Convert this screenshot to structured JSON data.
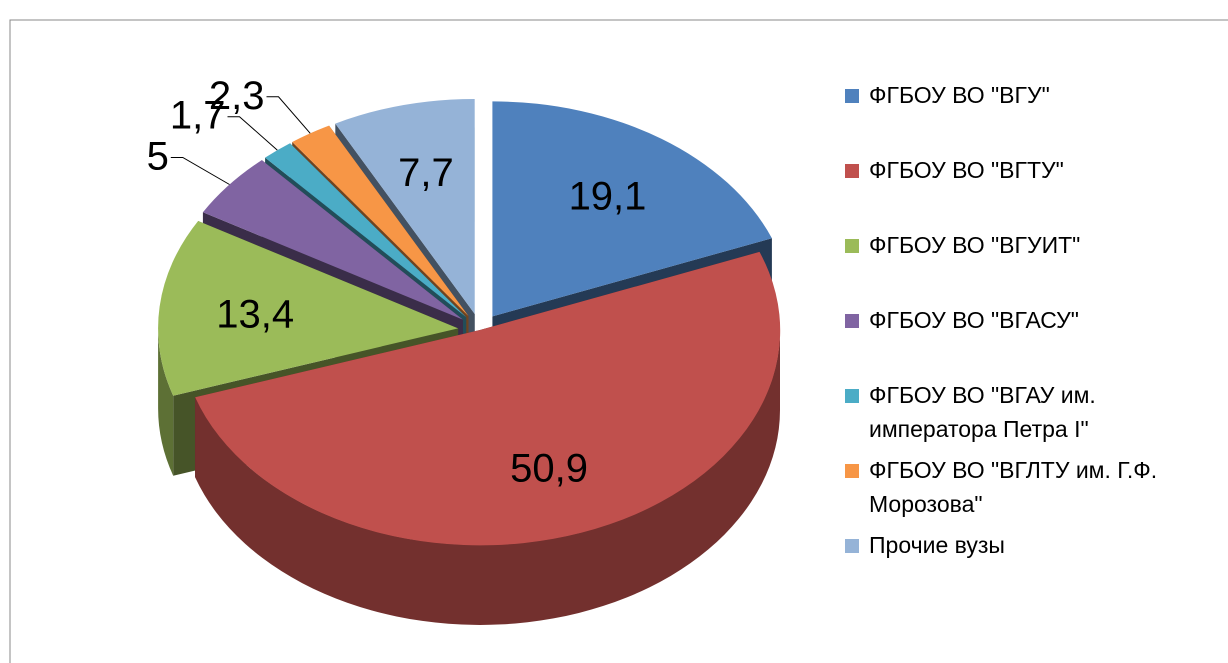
{
  "chart_data": {
    "type": "pie3d",
    "categories": [
      "ФГБОУ ВО \"ВГУ\"",
      "ФГБОУ ВО \"ВГТУ\"",
      "ФГБОУ ВО \"ВГУИТ\"",
      "ФГБОУ ВО \"ВГАСУ\"",
      "ФГБОУ ВО \"ВГАУ им. императора Петра I\"",
      "ФГБОУ ВО \"ВГЛТУ им. Г.Ф. Морозова\"",
      "Прочие вузы"
    ],
    "values": [
      19.1,
      50.9,
      13.4,
      5,
      1.7,
      2.3,
      7.7
    ],
    "value_labels": [
      "19,1",
      "50,9",
      "13,4",
      "5",
      "1,7",
      "2,3",
      "7,7"
    ],
    "colors": [
      "#4f81bd",
      "#c0504d",
      "#9bbb59",
      "#8064a2",
      "#4bacc6",
      "#f79646",
      "#95b3d7"
    ],
    "legend": "right"
  }
}
